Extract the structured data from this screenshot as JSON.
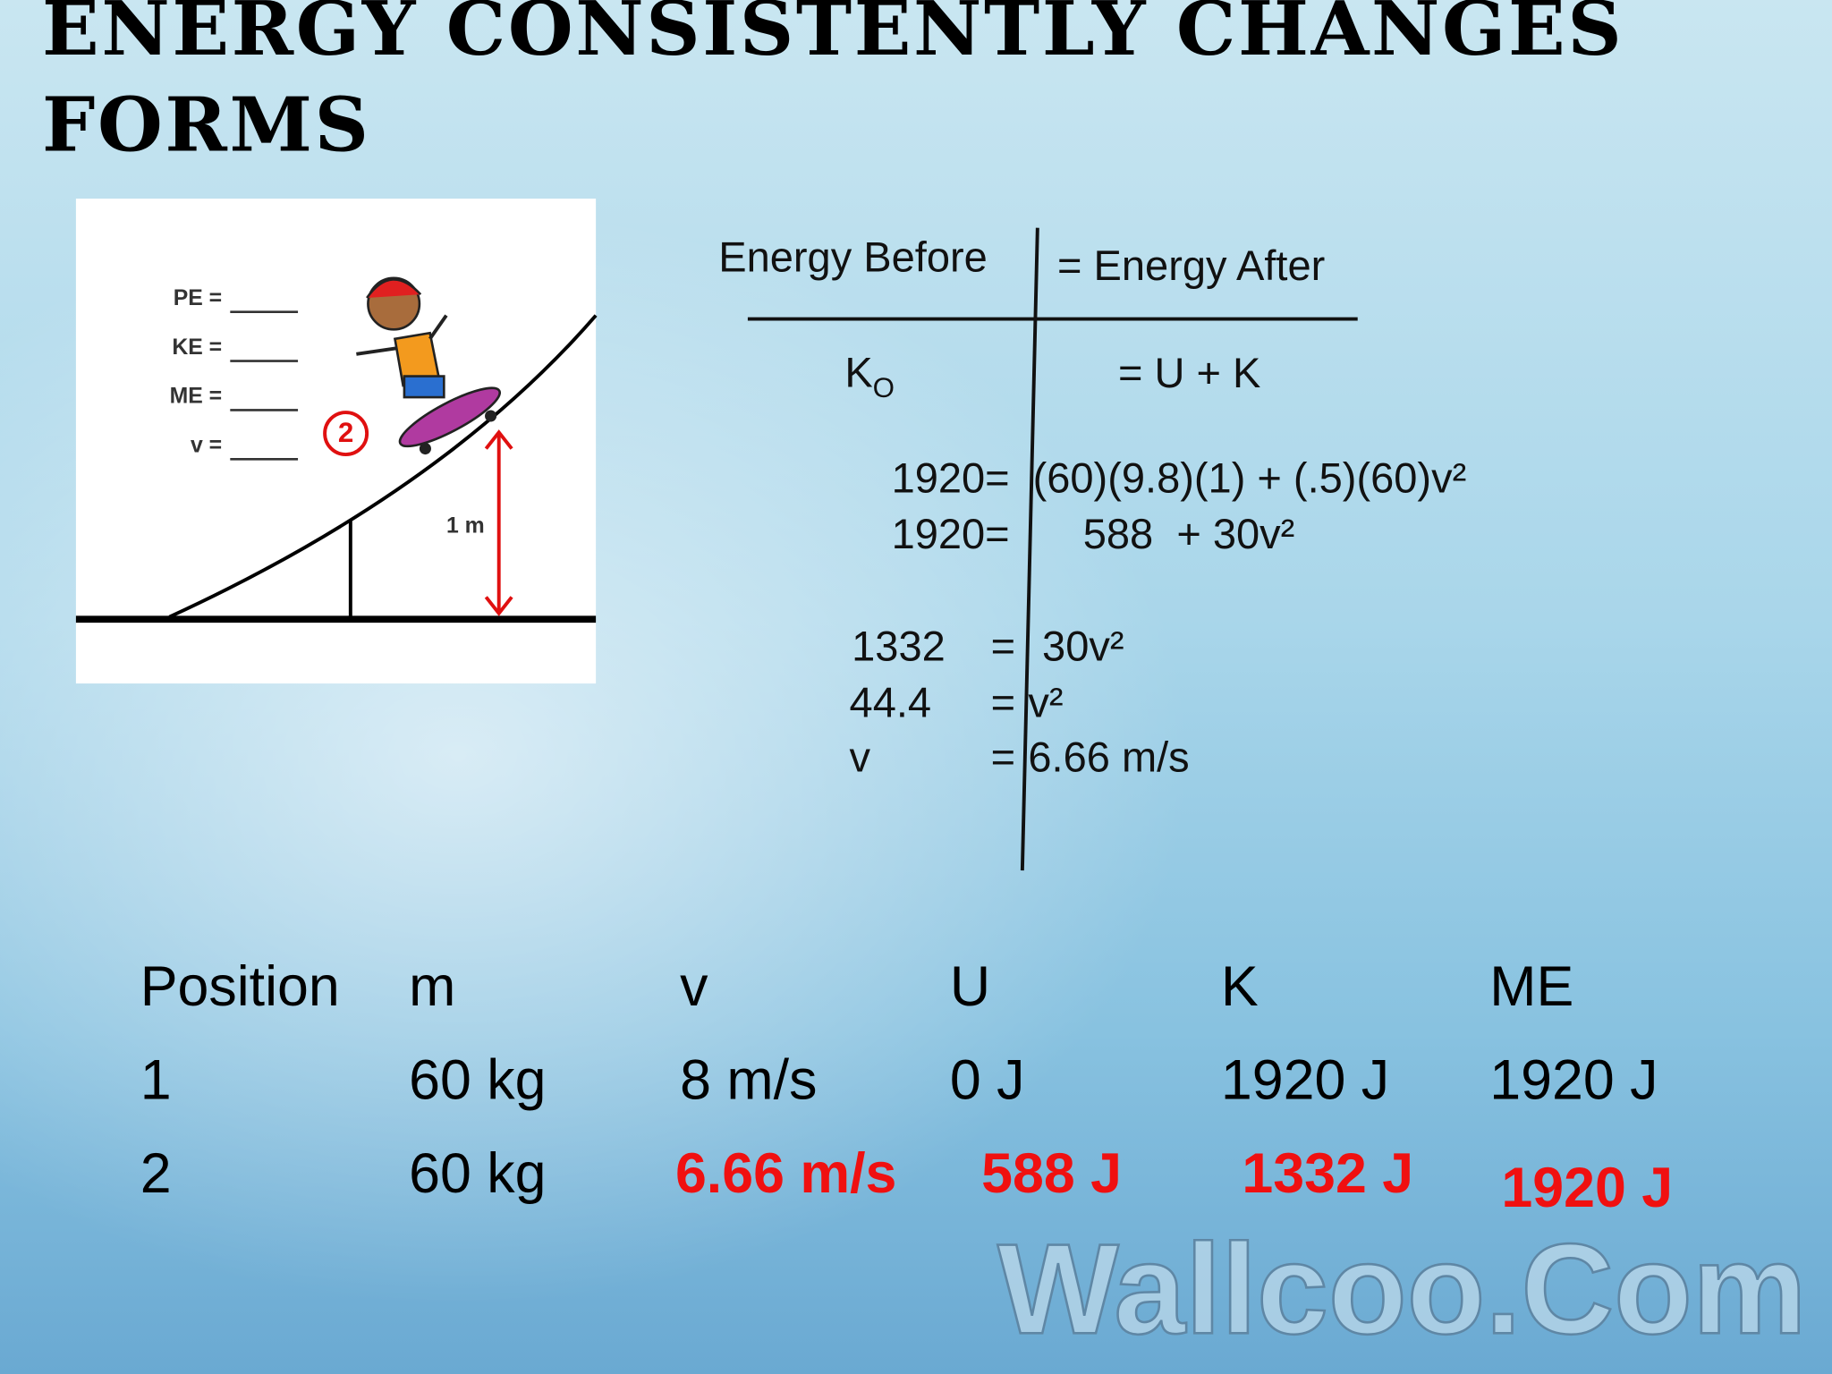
{
  "title": "Energy Consistently Changes Forms",
  "figure": {
    "labels": [
      "PE =",
      "KE =",
      "ME =",
      "v ="
    ],
    "position": "2",
    "height": "1 m"
  },
  "equations": {
    "before": "Energy Before",
    "after": "= Energy After",
    "symbolic": {
      "left": {
        "base": "K",
        "sub": "O"
      },
      "right": "= U + K"
    },
    "rows": [
      [
        "1920=",
        "(60)(9.8)(1) + (.5)(60)v²"
      ],
      [
        "1920=",
        "588  + 30v²"
      ],
      [
        "1332",
        "=",
        "30v²"
      ],
      [
        "44.4",
        "=",
        "v²"
      ],
      [
        "v",
        "=",
        "6.66 m/s"
      ]
    ]
  },
  "table": {
    "headers": [
      "Position",
      "m",
      "v",
      "U",
      "K",
      "ME"
    ],
    "rows": [
      [
        "1",
        "60 kg",
        "8 m/s",
        "0 J",
        "1920 J",
        "1920 J"
      ],
      [
        "2",
        "60 kg",
        "6.66 m/s",
        "588 J",
        "1332 J",
        "1920 J"
      ]
    ]
  },
  "watermark": "Wallcoo.Com"
}
